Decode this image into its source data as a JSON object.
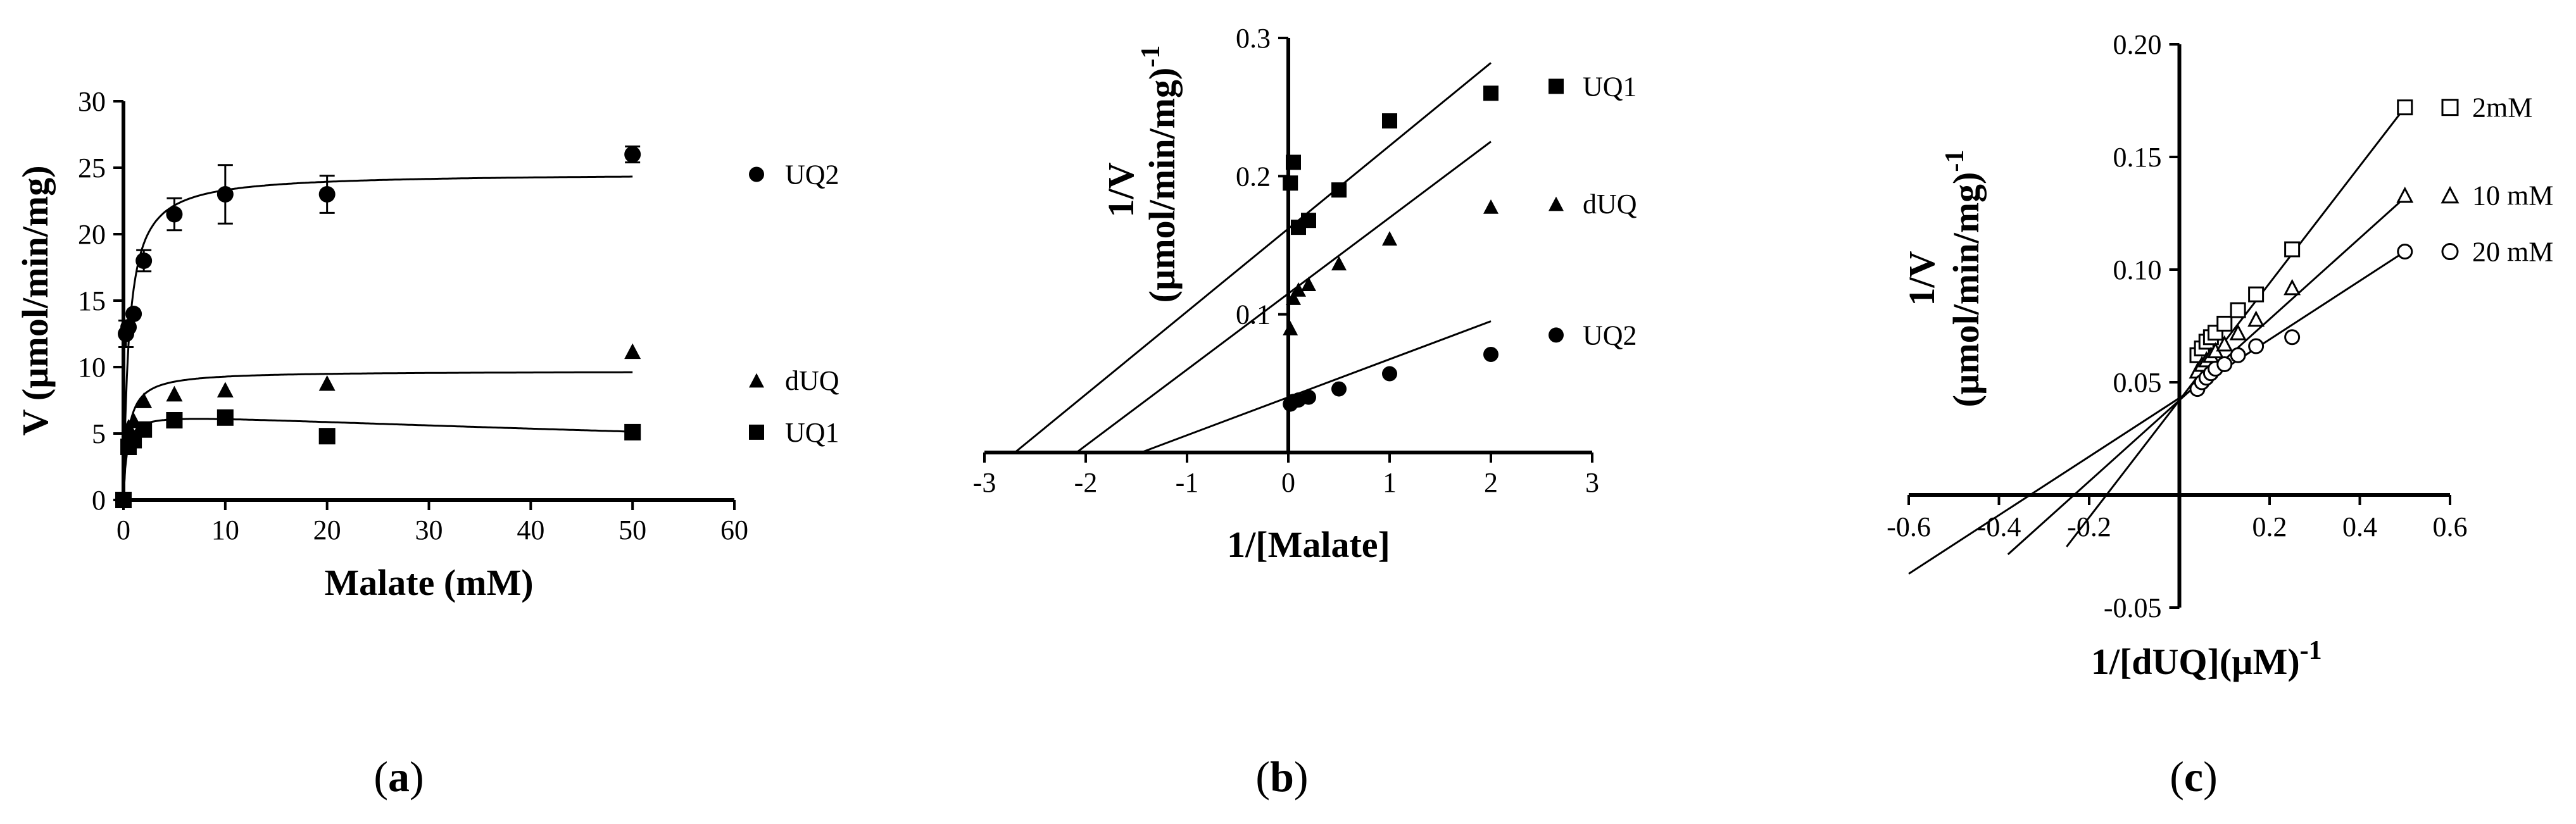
{
  "chart_data": [
    {
      "panel": "a",
      "type": "scatter",
      "panel_label": {
        "open": "(",
        "letter": "a",
        "close": ")"
      },
      "xlabel": "Malate (mM)",
      "ylabel": "V (µmol/min/mg)",
      "xlim": [
        0,
        60
      ],
      "ylim": [
        0,
        30
      ],
      "xticks": [
        0,
        10,
        20,
        30,
        40,
        50,
        60
      ],
      "yticks": [
        0,
        5,
        10,
        15,
        20,
        25,
        30
      ],
      "legend_position": "right",
      "series": [
        {
          "name": "UQ2",
          "marker": "circle-filled",
          "points": [
            [
              0,
              0
            ],
            [
              0.25,
              12.5
            ],
            [
              0.5,
              13
            ],
            [
              1,
              14
            ],
            [
              2,
              18
            ],
            [
              5,
              21.5
            ],
            [
              10,
              23
            ],
            [
              20,
              23
            ],
            [
              50,
              26
            ]
          ],
          "errors": [
            0,
            1,
            0,
            0,
            0.8,
            1.2,
            2.2,
            1.4,
            0.6
          ],
          "fit": {
            "model": "michaelis-menten",
            "Vmax": 24.6,
            "Km": 0.55
          }
        },
        {
          "name": "dUQ",
          "marker": "triangle-filled",
          "points": [
            [
              0,
              0
            ],
            [
              0.5,
              5.5
            ],
            [
              1,
              6
            ],
            [
              2,
              7.5
            ],
            [
              5,
              8
            ],
            [
              10,
              8.3
            ],
            [
              20,
              8.8
            ],
            [
              50,
              11.2
            ]
          ],
          "fit": {
            "model": "michaelis-menten",
            "Vmax": 9.7,
            "Km": 0.45
          }
        },
        {
          "name": "UQ1",
          "marker": "square-filled",
          "points": [
            [
              0,
              0
            ],
            [
              0.5,
              4
            ],
            [
              1,
              4.5
            ],
            [
              2,
              5.3
            ],
            [
              5,
              6
            ],
            [
              10,
              6.2
            ],
            [
              20,
              4.8
            ],
            [
              50,
              5.1
            ]
          ],
          "fit": {
            "model": "substrate-inhibition",
            "Vmax": 6.6,
            "Km": 0.3,
            "Ki": 180
          }
        }
      ]
    },
    {
      "panel": "b",
      "type": "scatter",
      "panel_label": {
        "open": "(",
        "letter": "b",
        "close": ")"
      },
      "xlabel": "1/[Malate]",
      "ylabel_line1": "1/V",
      "ylabel_line2": "(µmol/min/mg)",
      "ylabel_sup": "-1",
      "xlim": [
        -3,
        3
      ],
      "ylim": [
        0,
        0.3
      ],
      "xticks": [
        -3,
        -2,
        -1,
        0,
        1,
        2,
        3
      ],
      "yticks": [
        0.1,
        0.2,
        0.3
      ],
      "ytick_labels": [
        "0.1",
        "0.2",
        "0.3"
      ],
      "legend_position": "right",
      "series": [
        {
          "name": "UQ1",
          "marker": "square-filled",
          "points": [
            [
              0.02,
              0.195
            ],
            [
              0.05,
              0.21
            ],
            [
              0.1,
              0.163
            ],
            [
              0.2,
              0.168
            ],
            [
              0.5,
              0.19
            ],
            [
              1,
              0.24
            ],
            [
              2,
              0.26
            ]
          ],
          "fit": {
            "slope": 0.06,
            "intercept": 0.162
          }
        },
        {
          "name": "dUQ",
          "marker": "triangle-filled",
          "points": [
            [
              0.02,
              0.09
            ],
            [
              0.05,
              0.112
            ],
            [
              0.1,
              0.118
            ],
            [
              0.2,
              0.122
            ],
            [
              0.5,
              0.137
            ],
            [
              1,
              0.155
            ],
            [
              2,
              0.178
            ]
          ],
          "fit": {
            "slope": 0.055,
            "intercept": 0.115
          }
        },
        {
          "name": "UQ2",
          "marker": "circle-filled",
          "points": [
            [
              0.02,
              0.035
            ],
            [
              0.05,
              0.037
            ],
            [
              0.1,
              0.038
            ],
            [
              0.2,
              0.04
            ],
            [
              0.5,
              0.046
            ],
            [
              1,
              0.057
            ],
            [
              2,
              0.071
            ]
          ],
          "fit": {
            "slope": 0.0275,
            "intercept": 0.04
          }
        }
      ],
      "fit_x_start": [
        -2.7,
        -2.1,
        -1.45
      ],
      "fit_x_end": 2.0
    },
    {
      "panel": "c",
      "type": "scatter",
      "panel_label": {
        "open": "(",
        "letter": "c",
        "close": ")"
      },
      "xlabel_main": "1/[dUQ](µM)",
      "xlabel_sup": "-1",
      "ylabel_line1": "1/V",
      "ylabel_line2": "(µmol/min/mg)",
      "ylabel_sup": "-1",
      "xlim": [
        -0.6,
        0.6
      ],
      "ylim": [
        -0.05,
        0.2
      ],
      "xticks": [
        -0.6,
        -0.4,
        -0.2,
        0.2,
        0.4,
        0.6
      ],
      "xtick_labels": [
        "-0.6",
        "-0.4",
        "-0.2",
        "0.2",
        "0.4",
        "0.6"
      ],
      "yticks": [
        -0.05,
        0.05,
        0.1,
        0.15,
        0.2
      ],
      "ytick_labels": [
        "-0.05",
        "0.05",
        "0.10",
        "0.15",
        "0.20"
      ],
      "legend_position": "right",
      "series": [
        {
          "name": "2mM",
          "marker": "square-open",
          "points": [
            [
              0.04,
              0.062
            ],
            [
              0.05,
              0.065
            ],
            [
              0.06,
              0.068
            ],
            [
              0.07,
              0.07
            ],
            [
              0.08,
              0.072
            ],
            [
              0.1,
              0.076
            ],
            [
              0.13,
              0.082
            ],
            [
              0.17,
              0.089
            ],
            [
              0.25,
              0.109
            ],
            [
              0.5,
              0.172
            ]
          ],
          "fit": {
            "slope": 0.26,
            "intercept": 0.042,
            "x_start": -0.25,
            "x_end": 0.5
          }
        },
        {
          "name": "10 mM",
          "marker": "triangle-open",
          "points": [
            [
              0.04,
              0.055
            ],
            [
              0.05,
              0.058
            ],
            [
              0.06,
              0.06
            ],
            [
              0.07,
              0.062
            ],
            [
              0.08,
              0.064
            ],
            [
              0.1,
              0.067
            ],
            [
              0.13,
              0.072
            ],
            [
              0.17,
              0.078
            ],
            [
              0.25,
              0.092
            ],
            [
              0.5,
              0.133
            ]
          ],
          "fit": {
            "slope": 0.18,
            "intercept": 0.042,
            "x_start": -0.38,
            "x_end": 0.5
          }
        },
        {
          "name": "20 mM",
          "marker": "circle-open",
          "points": [
            [
              0.04,
              0.047
            ],
            [
              0.05,
              0.05
            ],
            [
              0.06,
              0.052
            ],
            [
              0.07,
              0.054
            ],
            [
              0.08,
              0.056
            ],
            [
              0.1,
              0.058
            ],
            [
              0.13,
              0.062
            ],
            [
              0.17,
              0.066
            ],
            [
              0.25,
              0.07
            ],
            [
              0.5,
              0.108
            ]
          ],
          "fit": {
            "slope": 0.13,
            "intercept": 0.043,
            "x_start": -0.6,
            "x_end": 0.5
          }
        }
      ]
    }
  ]
}
